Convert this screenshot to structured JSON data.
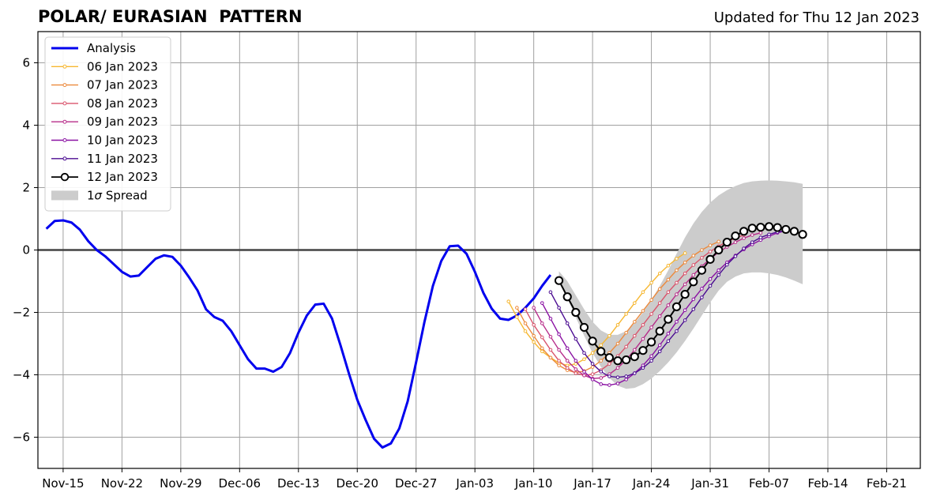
{
  "chart_data": {
    "type": "line",
    "title": "POLAR/ EURASIAN  PATTERN",
    "subtitle": "Updated for Thu 12 Jan 2023",
    "xlabel": "",
    "ylabel": "",
    "xlim": [
      "2022-11-12",
      "2023-02-25"
    ],
    "ylim": [
      -7,
      7
    ],
    "grid": true,
    "legend_position": "top-left",
    "x_ticks": [
      "2022-11-15",
      "2022-11-22",
      "2022-11-29",
      "2022-12-06",
      "2022-12-13",
      "2022-12-20",
      "2022-12-27",
      "2023-01-03",
      "2023-01-10",
      "2023-01-17",
      "2023-01-24",
      "2023-01-31",
      "2023-02-07",
      "2023-02-14",
      "2023-02-21"
    ],
    "x_tick_labels": [
      "Nov-15",
      "Nov-22",
      "Nov-29",
      "Dec-06",
      "Dec-13",
      "Dec-20",
      "Dec-27",
      "Jan-03",
      "Jan-10",
      "Jan-17",
      "Jan-24",
      "Jan-31",
      "Feb-07",
      "Feb-14",
      "Feb-21"
    ],
    "y_ticks": [
      -6,
      -4,
      -2,
      0,
      2,
      4,
      6
    ],
    "y_tick_labels": [
      "−6",
      "−4",
      "−2",
      "0",
      "2",
      "4",
      "6"
    ],
    "analysis": {
      "name": "Analysis",
      "color": "#0000ee",
      "start": "2022-11-13",
      "values": [
        0.68,
        0.93,
        0.95,
        0.88,
        0.65,
        0.28,
        0.0,
        -0.2,
        -0.45,
        -0.7,
        -0.85,
        -0.82,
        -0.55,
        -0.28,
        -0.17,
        -0.22,
        -0.5,
        -0.88,
        -1.3,
        -1.9,
        -2.15,
        -2.27,
        -2.6,
        -3.05,
        -3.5,
        -3.8,
        -3.8,
        -3.9,
        -3.75,
        -3.3,
        -2.65,
        -2.1,
        -1.75,
        -1.72,
        -2.2,
        -3.05,
        -3.95,
        -4.8,
        -5.45,
        -6.05,
        -6.33,
        -6.2,
        -5.72,
        -4.85,
        -3.6,
        -2.3,
        -1.15,
        -0.35,
        0.12,
        0.14,
        -0.12,
        -0.7,
        -1.37,
        -1.88,
        -2.2,
        -2.24,
        -2.1,
        -1.85,
        -1.55,
        -1.15,
        -0.8
      ]
    },
    "forecasts": [
      {
        "name": "06 Jan 2023",
        "color": "#f6b731",
        "start": "2023-01-07",
        "values": [
          -1.65,
          -2.15,
          -2.6,
          -2.95,
          -3.25,
          -3.45,
          -3.62,
          -3.7,
          -3.65,
          -3.5,
          -3.3,
          -3.05,
          -2.75,
          -2.4,
          -2.05,
          -1.7,
          -1.35,
          -1.05,
          -0.75,
          -0.5,
          -0.28,
          -0.1
        ]
      },
      {
        "name": "07 Jan 2023",
        "color": "#ec8a3d",
        "start": "2023-01-08",
        "values": [
          -1.85,
          -2.35,
          -2.75,
          -3.15,
          -3.45,
          -3.7,
          -3.85,
          -3.93,
          -3.88,
          -3.75,
          -3.55,
          -3.3,
          -3.0,
          -2.65,
          -2.3,
          -1.95,
          -1.6,
          -1.25,
          -0.95,
          -0.65,
          -0.4,
          -0.18,
          0.0,
          0.15,
          0.27
        ]
      },
      {
        "name": "08 Jan 2023",
        "color": "#d9536b",
        "start": "2023-01-09",
        "values": [
          -1.9,
          -2.4,
          -2.8,
          -3.2,
          -3.55,
          -3.78,
          -3.95,
          -4.02,
          -3.98,
          -3.85,
          -3.65,
          -3.4,
          -3.1,
          -2.75,
          -2.4,
          -2.05,
          -1.7,
          -1.35,
          -1.05,
          -0.75,
          -0.48,
          -0.25,
          -0.05,
          0.12,
          0.27,
          0.38,
          0.48
        ]
      },
      {
        "name": "09 Jan 2023",
        "color": "#b72d8a",
        "start": "2023-01-10",
        "values": [
          -1.85,
          -2.35,
          -2.78,
          -3.2,
          -3.55,
          -3.82,
          -4.02,
          -4.12,
          -4.1,
          -3.98,
          -3.78,
          -3.52,
          -3.2,
          -2.85,
          -2.48,
          -2.12,
          -1.77,
          -1.42,
          -1.1,
          -0.8,
          -0.52,
          -0.28,
          -0.07,
          0.1,
          0.25,
          0.38,
          0.48,
          0.55
        ]
      },
      {
        "name": "10 Jan 2023",
        "color": "#8a11a3",
        "start": "2023-01-11",
        "values": [
          -1.7,
          -2.2,
          -2.7,
          -3.15,
          -3.55,
          -3.9,
          -4.15,
          -4.3,
          -4.33,
          -4.28,
          -4.15,
          -3.95,
          -3.7,
          -3.4,
          -3.05,
          -2.68,
          -2.3,
          -1.93,
          -1.58,
          -1.24,
          -0.93,
          -0.65,
          -0.4,
          -0.18,
          0.02,
          0.18,
          0.32,
          0.44,
          0.55,
          0.62
        ]
      },
      {
        "name": "11 Jan 2023",
        "color": "#4b0c92",
        "start": "2023-01-12",
        "values": [
          -1.35,
          -1.85,
          -2.35,
          -2.85,
          -3.3,
          -3.65,
          -3.9,
          -4.05,
          -4.08,
          -4.05,
          -3.95,
          -3.78,
          -3.55,
          -3.25,
          -2.92,
          -2.6,
          -2.25,
          -1.9,
          -1.52,
          -1.15,
          -0.8,
          -0.47,
          -0.2,
          0.05,
          0.25,
          0.4,
          0.5,
          0.58,
          0.62
        ]
      }
    ],
    "current_forecast": {
      "name": "12 Jan 2023",
      "color": "#000000",
      "start": "2023-01-13",
      "values": [
        -0.98,
        -1.5,
        -2.0,
        -2.48,
        -2.92,
        -3.25,
        -3.45,
        -3.55,
        -3.52,
        -3.42,
        -3.22,
        -2.95,
        -2.6,
        -2.22,
        -1.82,
        -1.42,
        -1.02,
        -0.65,
        -0.3,
        0.0,
        0.25,
        0.45,
        0.6,
        0.7,
        0.73,
        0.75,
        0.72,
        0.66,
        0.6,
        0.5
      ]
    },
    "spread": {
      "name": "1σ Spread",
      "color": "#cccccc",
      "start": "2023-01-13",
      "upper": [
        -0.68,
        -1.0,
        -1.45,
        -1.9,
        -2.3,
        -2.58,
        -2.72,
        -2.72,
        -2.6,
        -2.35,
        -2.0,
        -1.6,
        -1.15,
        -0.65,
        -0.12,
        0.4,
        0.85,
        1.22,
        1.52,
        1.75,
        1.92,
        2.05,
        2.15,
        2.2,
        2.22,
        2.23,
        2.22,
        2.2,
        2.17,
        2.12
      ],
      "lower": [
        -0.85,
        -1.55,
        -2.15,
        -2.75,
        -3.3,
        -3.75,
        -4.1,
        -4.35,
        -4.45,
        -4.42,
        -4.3,
        -4.12,
        -3.88,
        -3.6,
        -3.28,
        -2.92,
        -2.52,
        -2.1,
        -1.68,
        -1.3,
        -1.02,
        -0.85,
        -0.75,
        -0.72,
        -0.72,
        -0.75,
        -0.8,
        -0.88,
        -0.98,
        -1.1
      ]
    },
    "legend_sigma_prefix": "1",
    "legend_sigma_symbol": "σ",
    "legend_sigma_suffix": " Spread"
  }
}
